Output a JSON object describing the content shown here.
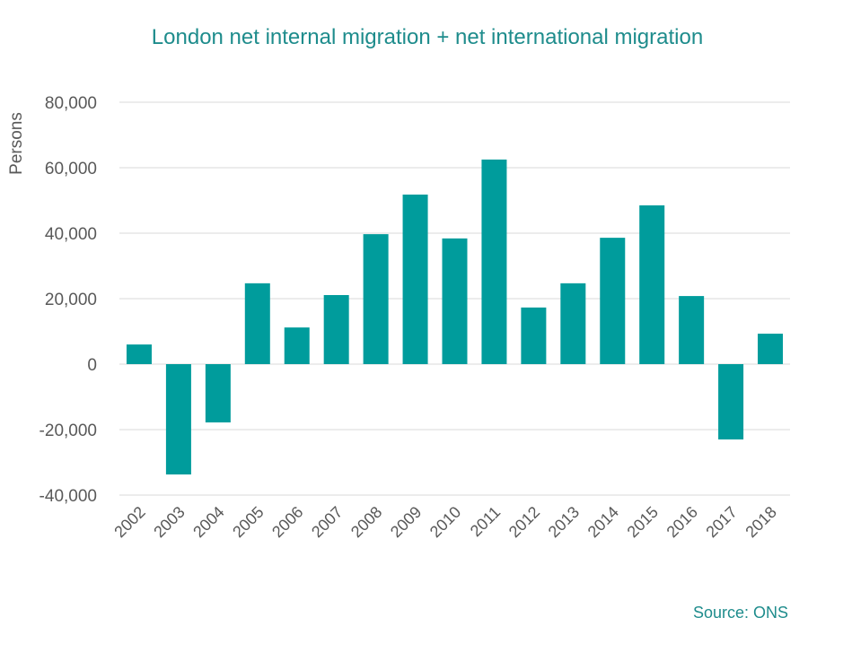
{
  "chart_data": {
    "type": "bar",
    "title": "London net internal migration + net international migration",
    "ylabel": "Persons",
    "xlabel": "",
    "source": "Source: ONS",
    "categories": [
      "2002",
      "2003",
      "2004",
      "2005",
      "2006",
      "2007",
      "2008",
      "2009",
      "2010",
      "2011",
      "2012",
      "2013",
      "2014",
      "2015",
      "2016",
      "2017",
      "2018"
    ],
    "values": [
      6000,
      -33700,
      -17800,
      24700,
      11200,
      21100,
      39700,
      51800,
      38400,
      62500,
      17300,
      24700,
      38600,
      48500,
      20800,
      -23000,
      9300
    ],
    "yticks": [
      -40000,
      -20000,
      0,
      20000,
      40000,
      60000,
      80000
    ],
    "ytick_labels": [
      "-40,000",
      "-20,000",
      "0",
      "20,000",
      "40,000",
      "60,000",
      "80,000"
    ],
    "ylim": [
      -40000,
      80000
    ],
    "grid": true,
    "colors": {
      "bar": "#009C9C",
      "title": "#1E8C8C",
      "grid": "#D9D9D9",
      "axis_text": "#595959"
    }
  }
}
